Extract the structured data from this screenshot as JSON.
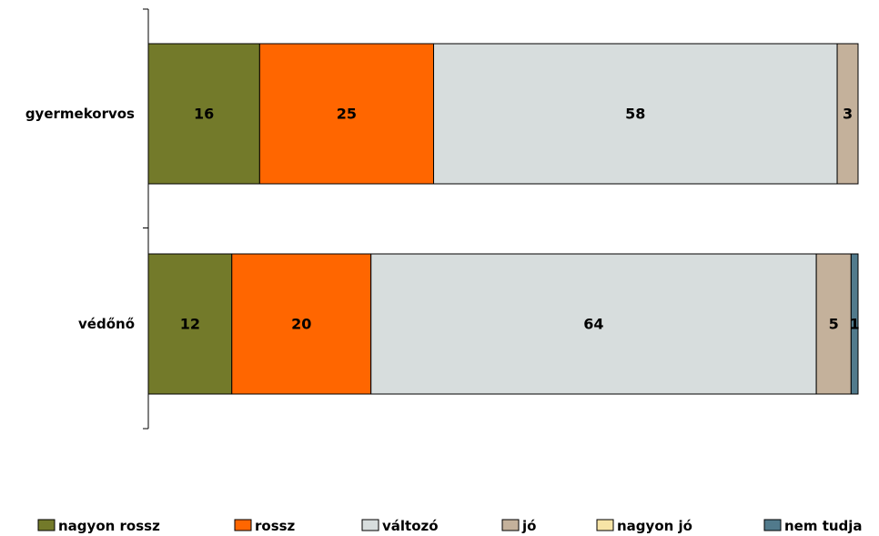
{
  "chart_data": {
    "type": "bar",
    "orientation": "horizontal",
    "stacked": true,
    "categories": [
      "gyermekorvos",
      "védőnő"
    ],
    "series": [
      {
        "name": "nagyon rossz",
        "color": "#737A2A",
        "values": [
          16,
          12
        ]
      },
      {
        "name": "rossz",
        "color": "#FF6600",
        "values": [
          25,
          20
        ]
      },
      {
        "name": "változó",
        "color": "#D7DDDD",
        "values": [
          58,
          64
        ]
      },
      {
        "name": "jó",
        "color": "#C4B19B",
        "values": [
          3,
          5
        ]
      },
      {
        "name": "nagyon jó",
        "color": "#F7E4A6",
        "values": [
          0,
          0
        ]
      },
      {
        "name": "nem tudja",
        "color": "#517A8C",
        "values": [
          0,
          1
        ]
      }
    ],
    "data_labels": [
      [
        "16",
        "25",
        "58",
        "3",
        "",
        ""
      ],
      [
        "12",
        "20",
        "64",
        "5",
        "",
        "1"
      ]
    ],
    "xlim": [
      0,
      102
    ],
    "grid": false,
    "legend_position": "bottom"
  }
}
